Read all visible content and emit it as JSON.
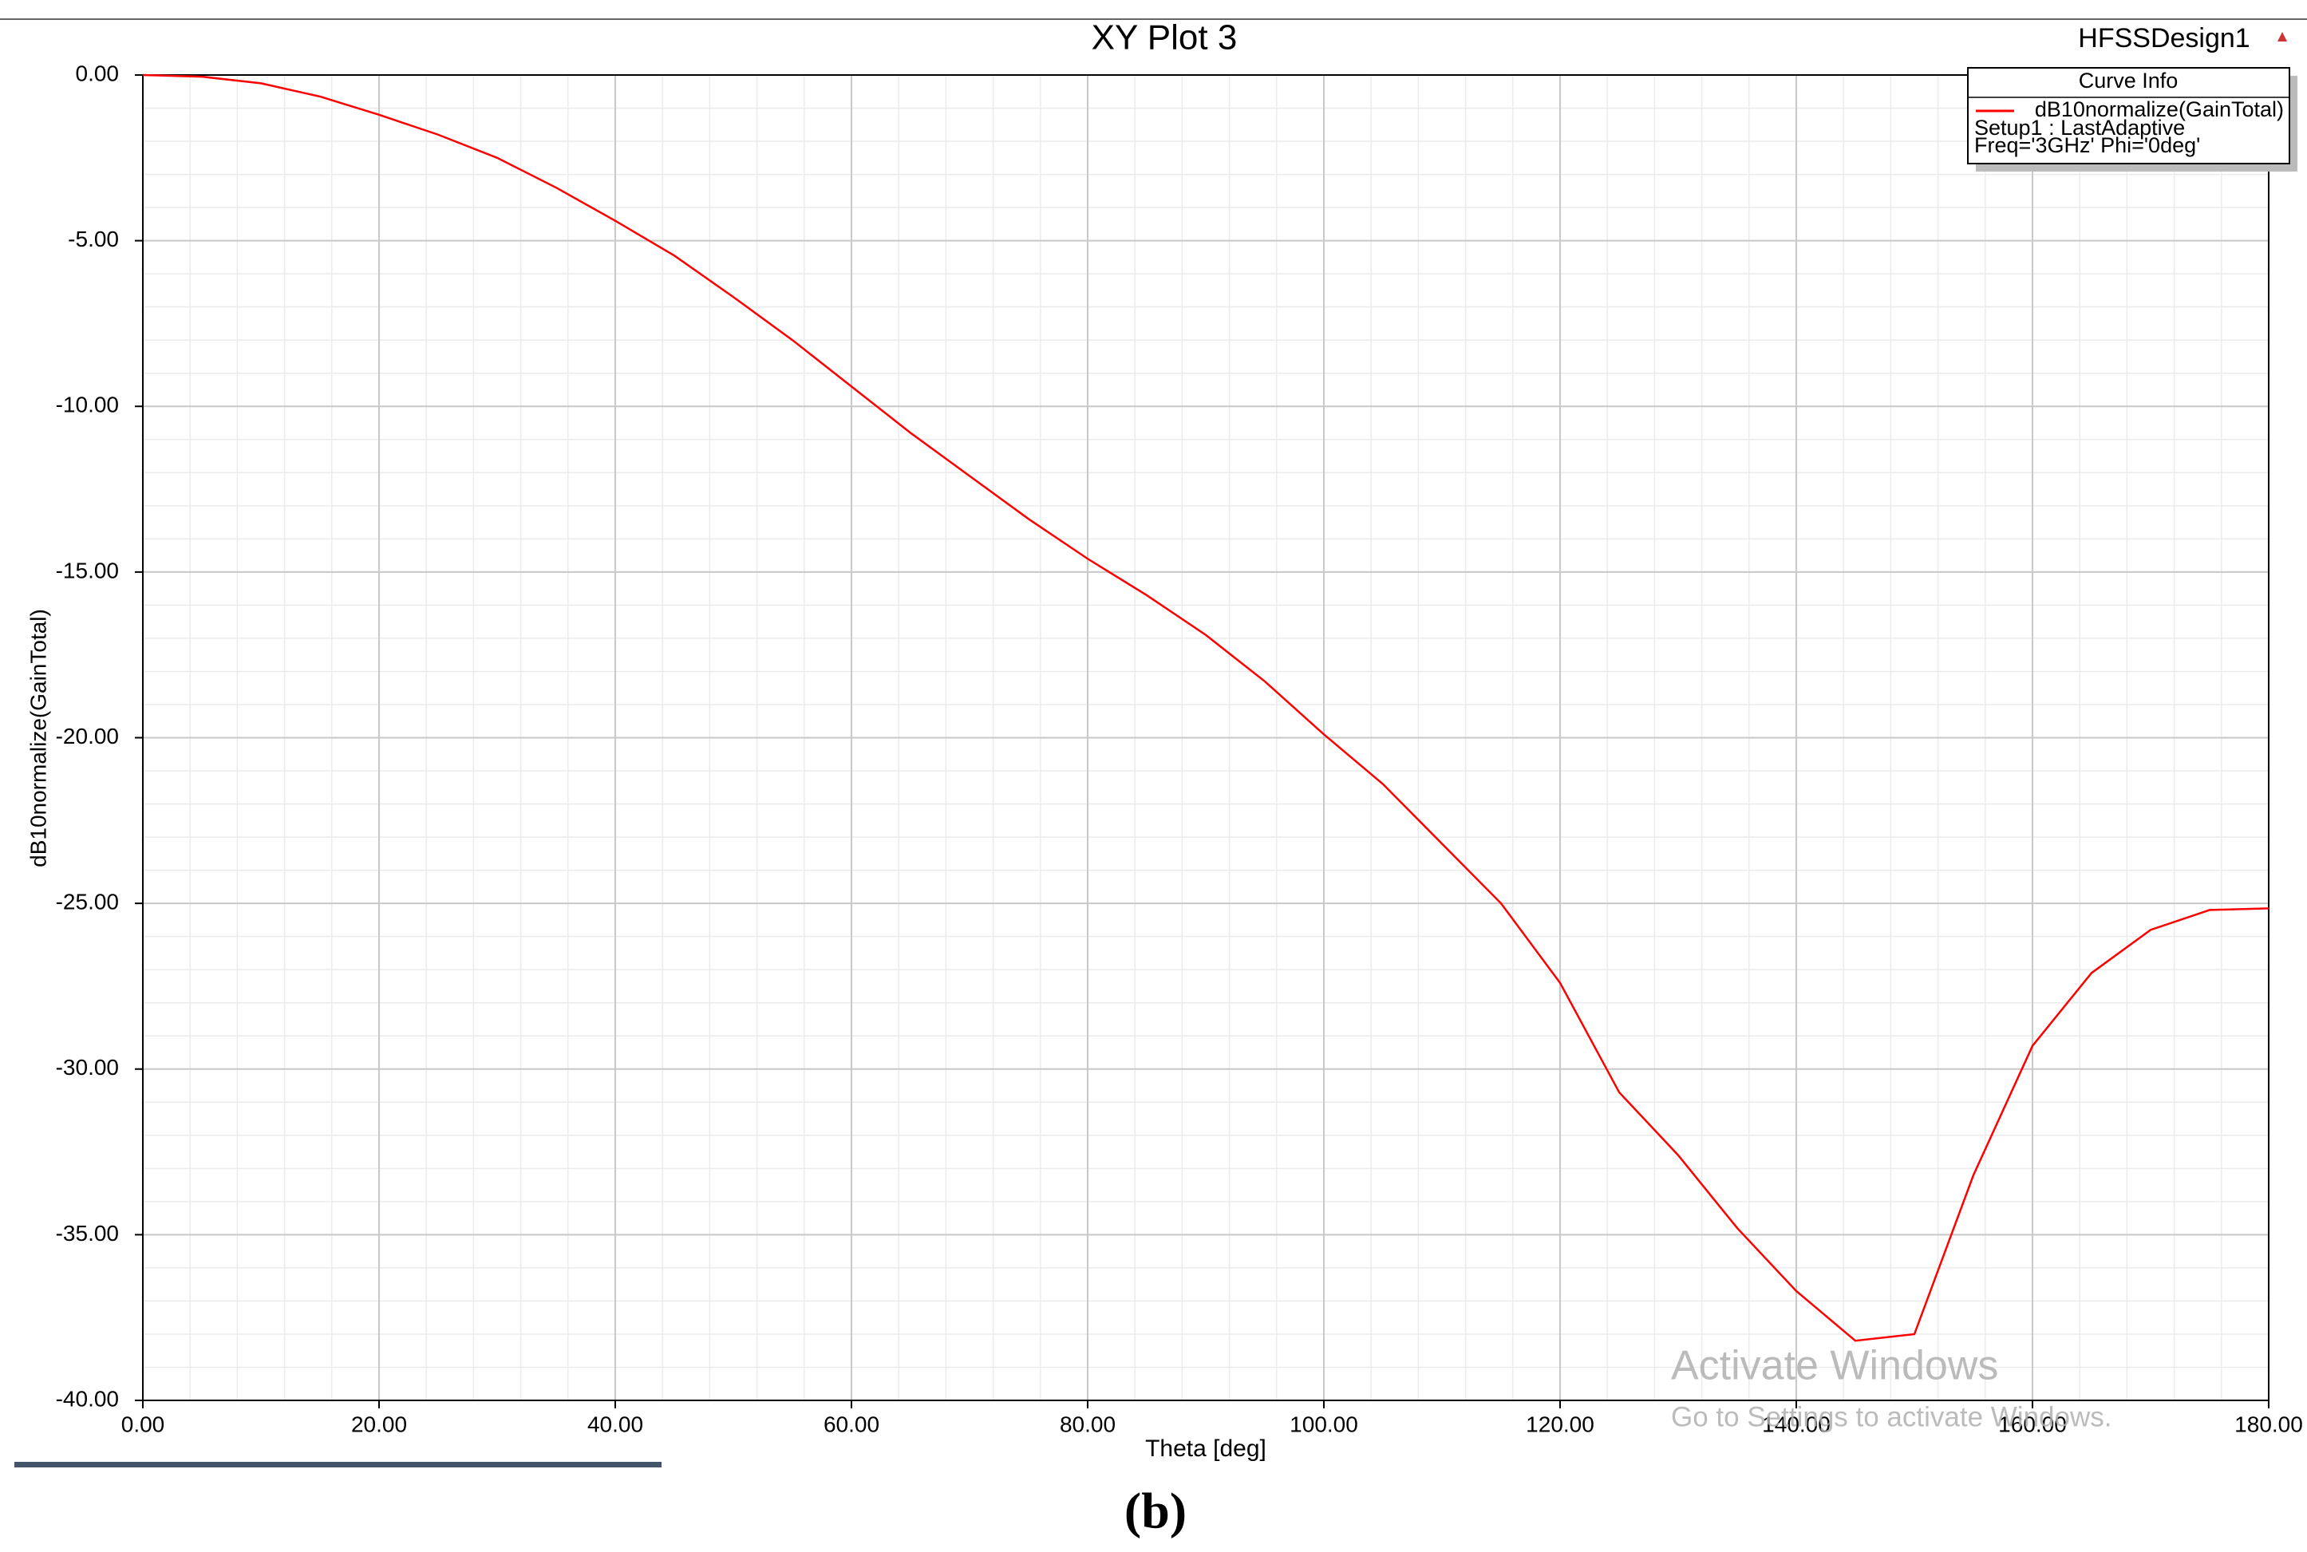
{
  "chart_data": {
    "type": "line",
    "title": "XY Plot 3",
    "design": "HFSSDesign1",
    "xlabel": "Theta [deg]",
    "ylabel": "dB10normalize(GainTotal)",
    "legend_title": "Curve Info",
    "legend_notes": [
      "Setup1 : LastAdaptive",
      "Freq='3GHz' Phi='0deg'"
    ],
    "x": [
      0,
      5,
      10,
      15,
      20,
      25,
      30,
      35,
      40,
      45,
      50,
      55,
      60,
      65,
      70,
      75,
      80,
      85,
      90,
      95,
      100,
      105,
      110,
      115,
      120,
      125,
      130,
      135,
      140,
      145,
      150,
      155,
      160,
      165,
      170,
      175,
      180
    ],
    "series": [
      {
        "name": "dB10normalize(GainTotal)",
        "color": "#ff0000",
        "values": [
          0,
          -0.05,
          -0.25,
          -0.65,
          -1.2,
          -1.8,
          -2.5,
          -3.4,
          -4.4,
          -5.45,
          -6.7,
          -8.0,
          -9.4,
          -10.8,
          -12.1,
          -13.4,
          -14.6,
          -15.7,
          -16.9,
          -18.3,
          -19.9,
          -21.4,
          -23.2,
          -25.0,
          -27.4,
          -30.7,
          -32.6,
          -34.8,
          -36.7,
          -38.2,
          -38.0,
          -33.2,
          -29.3,
          -27.1,
          -25.8,
          -25.2,
          -25.15
        ]
      }
    ],
    "xlim": [
      0,
      180
    ],
    "ylim": [
      -40,
      0
    ],
    "xticks": [
      {
        "value": 0,
        "label": "0.00"
      },
      {
        "value": 20,
        "label": "20.00"
      },
      {
        "value": 40,
        "label": "40.00"
      },
      {
        "value": 60,
        "label": "60.00"
      },
      {
        "value": 80,
        "label": "80.00"
      },
      {
        "value": 100,
        "label": "100.00"
      },
      {
        "value": 120,
        "label": "120.00"
      },
      {
        "value": 140,
        "label": "140.00"
      },
      {
        "value": 160,
        "label": "160.00"
      },
      {
        "value": 180,
        "label": "180.00"
      }
    ],
    "yticks": [
      {
        "value": 0,
        "label": "0.00"
      },
      {
        "value": -5,
        "label": "-5.00"
      },
      {
        "value": -10,
        "label": "-10.00"
      },
      {
        "value": -15,
        "label": "-15.00"
      },
      {
        "value": -20,
        "label": "-20.00"
      },
      {
        "value": -25,
        "label": "-25.00"
      },
      {
        "value": -30,
        "label": "-30.00"
      },
      {
        "value": -35,
        "label": "-35.00"
      },
      {
        "value": -40,
        "label": "-40.00"
      }
    ],
    "grid": true,
    "legend": "upper right"
  },
  "watermark": [
    "Activate Windows",
    "Go to Settings to activate Windows."
  ],
  "caption": "(b)"
}
